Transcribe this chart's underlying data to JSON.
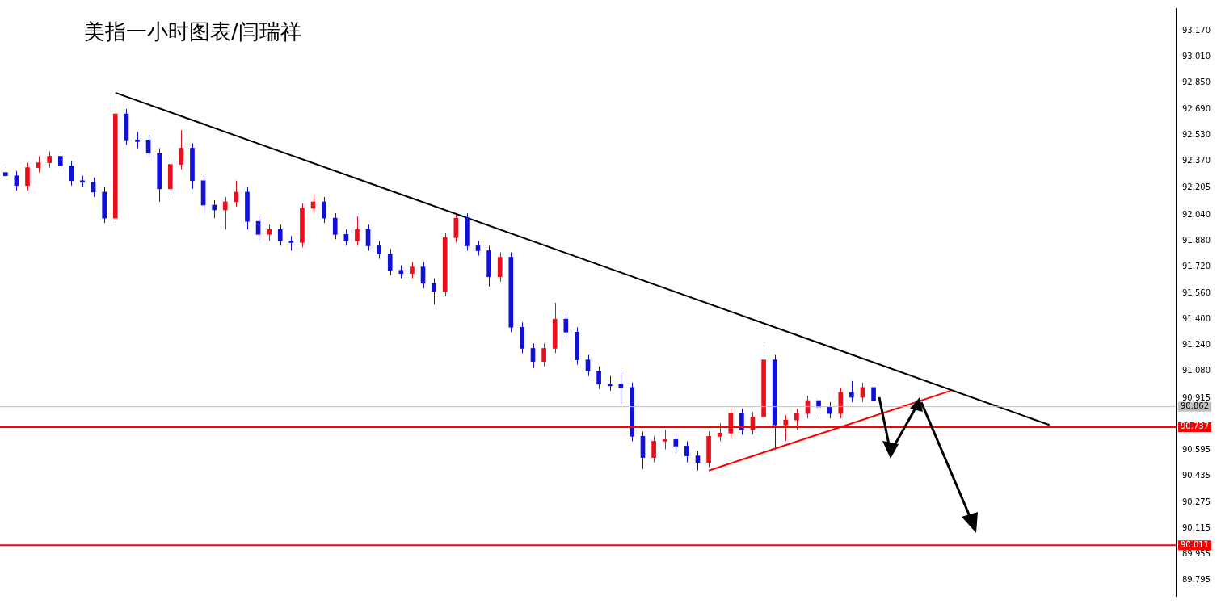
{
  "chart_data": {
    "type": "candlestick",
    "title": "美指一小时图表/闫瑞祥",
    "categories": [
      null,
      null,
      null,
      null,
      null,
      null,
      null,
      null,
      null,
      null,
      null,
      null,
      null,
      null,
      null,
      null,
      null,
      null,
      null,
      null,
      null,
      null,
      null,
      null,
      null,
      null,
      null,
      null,
      null,
      null,
      null,
      null,
      null,
      null,
      null,
      null,
      null,
      null,
      null,
      null,
      null,
      null,
      null,
      null,
      null,
      null,
      null,
      null,
      null,
      null,
      null,
      null,
      null,
      null,
      null,
      null,
      null,
      null,
      null,
      null,
      null,
      null,
      null,
      null,
      null,
      null,
      null,
      null,
      null,
      null,
      null,
      null,
      null,
      null,
      null,
      null,
      null,
      null,
      null,
      null,
      null,
      null,
      null,
      null,
      null,
      null,
      null,
      null,
      null,
      null,
      null,
      null,
      null,
      null,
      null,
      null,
      null,
      null,
      null,
      null,
      null,
      null,
      null,
      null,
      null,
      null,
      null
    ],
    "ohlc": [
      [
        92.3,
        92.33,
        92.25,
        92.28
      ],
      [
        92.28,
        92.31,
        92.19,
        92.22
      ],
      [
        92.22,
        92.36,
        92.19,
        92.33
      ],
      [
        92.33,
        92.4,
        92.3,
        92.36
      ],
      [
        92.36,
        92.43,
        92.33,
        92.4
      ],
      [
        92.4,
        92.43,
        92.31,
        92.34
      ],
      [
        92.34,
        92.37,
        92.22,
        92.25
      ],
      [
        92.25,
        92.28,
        92.21,
        92.24
      ],
      [
        92.24,
        92.27,
        92.15,
        92.18
      ],
      [
        92.18,
        92.21,
        91.99,
        92.02
      ],
      [
        92.02,
        92.79,
        91.99,
        92.66
      ],
      [
        92.66,
        92.69,
        92.47,
        92.5
      ],
      [
        92.5,
        92.55,
        92.45,
        92.49
      ],
      [
        92.5,
        92.53,
        92.39,
        92.42
      ],
      [
        92.42,
        92.45,
        92.12,
        92.2
      ],
      [
        92.2,
        92.38,
        92.14,
        92.35
      ],
      [
        92.35,
        92.56,
        92.32,
        92.45
      ],
      [
        92.45,
        92.48,
        92.2,
        92.25
      ],
      [
        92.25,
        92.28,
        92.05,
        92.1
      ],
      [
        92.1,
        92.13,
        92.02,
        92.07
      ],
      [
        92.07,
        92.15,
        91.95,
        92.12
      ],
      [
        92.12,
        92.25,
        92.09,
        92.18
      ],
      [
        92.18,
        92.21,
        91.95,
        92.0
      ],
      [
        92.0,
        92.03,
        91.89,
        91.92
      ],
      [
        91.92,
        91.98,
        91.88,
        91.95
      ],
      [
        91.95,
        91.98,
        91.85,
        91.88
      ],
      [
        91.88,
        91.91,
        91.82,
        91.87
      ],
      [
        91.87,
        92.11,
        91.84,
        92.08
      ],
      [
        92.08,
        92.16,
        92.05,
        92.12
      ],
      [
        92.12,
        92.15,
        91.99,
        92.02
      ],
      [
        92.02,
        92.05,
        91.89,
        91.92
      ],
      [
        91.92,
        91.95,
        91.85,
        91.88
      ],
      [
        91.88,
        92.03,
        91.85,
        91.95
      ],
      [
        91.95,
        91.98,
        91.82,
        91.85
      ],
      [
        91.85,
        91.88,
        91.77,
        91.8
      ],
      [
        91.8,
        91.83,
        91.67,
        91.7
      ],
      [
        91.7,
        91.73,
        91.65,
        91.68
      ],
      [
        91.68,
        91.75,
        91.65,
        91.72
      ],
      [
        91.72,
        91.75,
        91.59,
        91.62
      ],
      [
        91.62,
        91.65,
        91.49,
        91.57
      ],
      [
        91.57,
        91.93,
        91.54,
        91.9
      ],
      [
        91.9,
        92.04,
        91.87,
        92.02
      ],
      [
        92.02,
        92.05,
        91.82,
        91.85
      ],
      [
        91.85,
        91.88,
        91.79,
        91.82
      ],
      [
        91.82,
        91.85,
        91.6,
        91.66
      ],
      [
        91.66,
        91.81,
        91.63,
        91.78
      ],
      [
        91.78,
        91.81,
        91.32,
        91.35
      ],
      [
        91.35,
        91.38,
        91.19,
        91.22
      ],
      [
        91.22,
        91.25,
        91.1,
        91.14
      ],
      [
        91.14,
        91.25,
        91.11,
        91.22
      ],
      [
        91.22,
        91.5,
        91.19,
        91.4
      ],
      [
        91.4,
        91.43,
        91.29,
        91.32
      ],
      [
        91.32,
        91.35,
        91.12,
        91.15
      ],
      [
        91.15,
        91.18,
        91.05,
        91.08
      ],
      [
        91.08,
        91.11,
        90.97,
        91.0
      ],
      [
        91.0,
        91.05,
        90.96,
        90.99
      ],
      [
        91.0,
        91.07,
        90.88,
        90.98
      ],
      [
        90.98,
        91.01,
        90.65,
        90.68
      ],
      [
        90.68,
        90.71,
        90.48,
        90.55
      ],
      [
        90.55,
        90.68,
        90.52,
        90.65
      ],
      [
        90.65,
        90.72,
        90.6,
        90.66
      ],
      [
        90.66,
        90.69,
        90.58,
        90.62
      ],
      [
        90.62,
        90.65,
        90.52,
        90.56
      ],
      [
        90.56,
        90.59,
        90.47,
        90.52
      ],
      [
        90.52,
        90.71,
        90.49,
        90.68
      ],
      [
        90.68,
        90.76,
        90.65,
        90.7
      ],
      [
        90.7,
        90.85,
        90.67,
        90.82
      ],
      [
        90.82,
        90.85,
        90.69,
        90.72
      ],
      [
        90.72,
        90.83,
        90.69,
        90.8
      ],
      [
        90.8,
        91.24,
        90.77,
        91.15
      ],
      [
        91.15,
        91.18,
        90.6,
        90.75
      ],
      [
        90.75,
        90.81,
        90.65,
        90.78
      ],
      [
        90.78,
        90.85,
        90.72,
        90.82
      ],
      [
        90.82,
        90.93,
        90.79,
        90.9
      ],
      [
        90.9,
        90.93,
        90.8,
        90.86
      ],
      [
        90.86,
        90.89,
        90.79,
        90.82
      ],
      [
        90.82,
        90.98,
        90.79,
        90.95
      ],
      [
        90.95,
        91.02,
        90.89,
        90.92
      ],
      [
        90.92,
        91.01,
        90.89,
        90.98
      ],
      [
        90.98,
        91.01,
        90.87,
        90.9
      ],
      null,
      null,
      null,
      null,
      null,
      null,
      null,
      null,
      null,
      null,
      null,
      null,
      null,
      null,
      null,
      null,
      null,
      null,
      null,
      null,
      null,
      null,
      null,
      null,
      null,
      null,
      null
    ],
    "colors": [
      "#1010d8",
      "#1010d8",
      "#e8101b",
      "#e8101b",
      "#e8101b",
      "#1010d8",
      "#1010d8",
      "#1010d8",
      "#1010d8",
      "#1010d8",
      "#e8101b",
      "#1010d8",
      "#1010d8",
      "#1010d8",
      "#1010d8",
      "#e8101b",
      "#e8101b",
      "#1010d8",
      "#1010d8",
      "#1010d8",
      "#e8101b",
      "#e8101b",
      "#1010d8",
      "#1010d8",
      "#e8101b",
      "#1010d8",
      "#1010d8",
      "#e8101b",
      "#e8101b",
      "#1010d8",
      "#1010d8",
      "#1010d8",
      "#e8101b",
      "#1010d8",
      "#1010d8",
      "#1010d8",
      "#1010d8",
      "#e8101b",
      "#1010d8",
      "#1010d8",
      "#e8101b",
      "#e8101b",
      "#1010d8",
      "#1010d8",
      "#1010d8",
      "#e8101b",
      "#1010d8",
      "#1010d8",
      "#1010d8",
      "#e8101b",
      "#e8101b",
      "#1010d8",
      "#1010d8",
      "#1010d8",
      "#1010d8",
      "#1010d8",
      "#1010d8",
      "#1010d8",
      "#1010d8",
      "#e8101b",
      "#e8101b",
      "#1010d8",
      "#1010d8",
      "#1010d8",
      "#e8101b",
      "#e8101b",
      "#e8101b",
      "#1010d8",
      "#e8101b",
      "#e8101b",
      "#1010d8",
      "#e8101b",
      "#e8101b",
      "#e8101b",
      "#1010d8",
      "#1010d8",
      "#e8101b",
      "#1010d8",
      "#e8101b",
      "#1010d8",
      null,
      null,
      null,
      null,
      null,
      null,
      null,
      null,
      null,
      null,
      null,
      null,
      null,
      null,
      null,
      null,
      null,
      null,
      null,
      null,
      null,
      null,
      null,
      null,
      null,
      null,
      null
    ],
    "series": [
      {
        "type": "line",
        "color": "#000000",
        "values": [
          null,
          null,
          null,
          null,
          null,
          null,
          null,
          null,
          null,
          null,
          92.79,
          null,
          null,
          null,
          null,
          null,
          null,
          null,
          null,
          null,
          null,
          null,
          null,
          null,
          null,
          null,
          null,
          null,
          null,
          null,
          null,
          null,
          null,
          null,
          null,
          null,
          null,
          null,
          null,
          null,
          null,
          null,
          null,
          null,
          null,
          null,
          null,
          null,
          null,
          null,
          null,
          null,
          null,
          null,
          null,
          null,
          null,
          null,
          null,
          null,
          null,
          null,
          null,
          null,
          null,
          null,
          null,
          null,
          null,
          null,
          null,
          null,
          null,
          null,
          null,
          null,
          null,
          null,
          null,
          null,
          null,
          null,
          null,
          null,
          null,
          null,
          null,
          null,
          null,
          null,
          null,
          null,
          null,
          null,
          null,
          90.75,
          null,
          null,
          null,
          null,
          null,
          null,
          null,
          null,
          null,
          null,
          null
        ]
      },
      {
        "type": "line",
        "color": "#ff0000",
        "values": [
          null,
          null,
          null,
          null,
          null,
          null,
          null,
          null,
          null,
          null,
          null,
          null,
          null,
          null,
          null,
          null,
          null,
          null,
          null,
          null,
          null,
          null,
          null,
          null,
          null,
          null,
          null,
          null,
          null,
          null,
          null,
          null,
          null,
          null,
          null,
          null,
          null,
          null,
          null,
          null,
          null,
          null,
          null,
          null,
          null,
          null,
          null,
          null,
          null,
          null,
          null,
          null,
          null,
          null,
          null,
          null,
          null,
          null,
          null,
          null,
          null,
          null,
          null,
          null,
          90.47,
          null,
          null,
          null,
          null,
          null,
          null,
          null,
          null,
          null,
          null,
          null,
          null,
          null,
          null,
          null,
          null,
          null,
          null,
          null,
          null,
          null,
          90.96,
          null,
          null,
          null,
          null,
          null,
          null,
          null,
          null,
          null,
          null,
          null,
          null,
          null,
          null,
          null,
          null,
          null,
          null,
          null,
          null
        ]
      }
    ],
    "ylim": [
      89.7,
      93.31
    ],
    "yticks": [
      {
        "value": 89.795,
        "label": "89.795"
      },
      {
        "value": 89.955,
        "label": "89.955"
      },
      {
        "value": 90.115,
        "label": "90.115"
      },
      {
        "value": 90.275,
        "label": "90.275"
      },
      {
        "value": 90.435,
        "label": "90.435"
      },
      {
        "value": 90.595,
        "label": "90.595"
      },
      {
        "value": 90.915,
        "label": "90.915"
      },
      {
        "value": 91.08,
        "label": "91.080"
      },
      {
        "value": 91.24,
        "label": "91.240"
      },
      {
        "value": 91.4,
        "label": "91.400"
      },
      {
        "value": 91.56,
        "label": "91.560"
      },
      {
        "value": 91.72,
        "label": "91.720"
      },
      {
        "value": 91.88,
        "label": "91.880"
      },
      {
        "value": 92.04,
        "label": "92.040"
      },
      {
        "value": 92.205,
        "label": "92.205"
      },
      {
        "value": 92.37,
        "label": "92.370"
      },
      {
        "value": 92.53,
        "label": "92.530"
      },
      {
        "value": 92.69,
        "label": "92.690"
      },
      {
        "value": 92.85,
        "label": "92.850"
      },
      {
        "value": 93.01,
        "label": "93.010"
      },
      {
        "value": 93.17,
        "label": "93.170"
      }
    ],
    "tick_labels": "y",
    "grid": false,
    "legend": false,
    "ref_lines": [
      {
        "axis": "y",
        "value": 90.862,
        "label": "90.862",
        "color": "#c0c0c0"
      },
      {
        "axis": "y",
        "value": 90.737,
        "label": "90.737",
        "color": "#ff0000"
      },
      {
        "axis": "y",
        "value": 90.011,
        "label": "90.011",
        "color": "#ff0000"
      }
    ]
  }
}
